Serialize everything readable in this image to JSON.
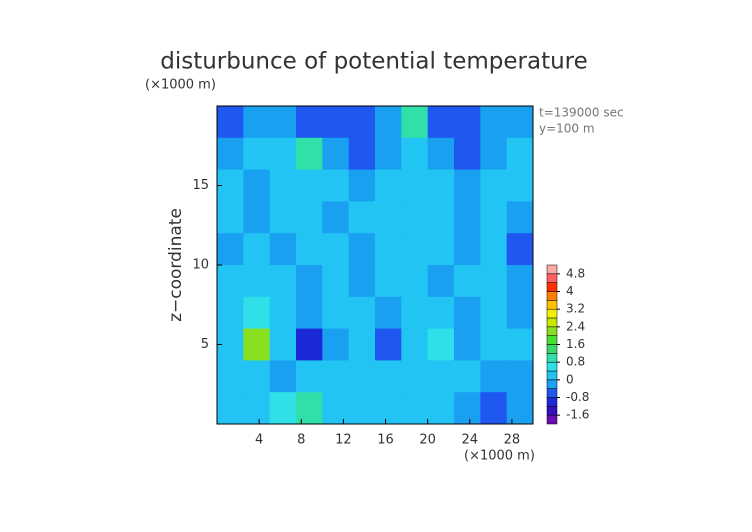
{
  "chart_data": {
    "type": "contour",
    "title": "disturbunce of potential temperature",
    "x_unit_label": "(×1000 m)",
    "y_unit_label": "(×1000 m)",
    "ylabel": "z−coordinate",
    "annotations": [
      "t=139000 sec",
      "y=100 m"
    ],
    "xlim": [
      0,
      30
    ],
    "ylim": [
      0,
      20
    ],
    "xticks": [
      4,
      8,
      12,
      16,
      20,
      24,
      28
    ],
    "yticks": [
      5,
      10,
      15
    ],
    "x": [
      1.25,
      3.75,
      6.25,
      8.75,
      11.25,
      13.75,
      16.25,
      18.75,
      21.25,
      23.75,
      26.25,
      28.75
    ],
    "y": [
      19,
      17,
      15,
      13,
      11,
      9,
      7,
      5,
      3,
      1
    ],
    "z": [
      [
        -0.6,
        -0.3,
        -0.2,
        -0.5,
        -0.7,
        -0.5,
        -0.4,
        0.8,
        -0.6,
        -0.5,
        -0.3,
        -0.2
      ],
      [
        -0.2,
        0.1,
        0.2,
        0.9,
        -0.3,
        -0.5,
        -0.2,
        0.1,
        -0.4,
        -0.6,
        -0.2,
        0.1
      ],
      [
        0.1,
        -0.2,
        0.1,
        0.2,
        0.2,
        -0.1,
        0.1,
        0.2,
        0.1,
        -0.2,
        0.1,
        0.2
      ],
      [
        0.2,
        -0.1,
        0.1,
        0.3,
        -0.1,
        0.2,
        0.1,
        0.2,
        0.3,
        -0.3,
        0.1,
        -0.3
      ],
      [
        -0.1,
        0.2,
        -0.2,
        0.1,
        0.3,
        -0.2,
        0.1,
        0.3,
        0.1,
        -0.2,
        0.2,
        -0.6
      ],
      [
        0.2,
        0.1,
        0.3,
        -0.1,
        0.2,
        -0.3,
        0.1,
        0.2,
        -0.1,
        0.2,
        0.1,
        -0.4
      ],
      [
        0.1,
        0.5,
        0.2,
        -0.3,
        0.1,
        0.2,
        -0.1,
        0.3,
        0.2,
        -0.4,
        0.1,
        -0.3
      ],
      [
        0.1,
        2.0,
        0.3,
        -1.0,
        -0.3,
        0.1,
        -0.6,
        0.1,
        0.5,
        -0.4,
        0.2,
        0.1
      ],
      [
        0.1,
        0.2,
        -0.2,
        0.1,
        0.3,
        0.1,
        0.2,
        0.1,
        0.3,
        0.2,
        -0.3,
        -0.2
      ],
      [
        0.2,
        0.1,
        0.6,
        0.8,
        0.3,
        0.2,
        0.1,
        0.3,
        0.2,
        -0.3,
        -0.8,
        -0.3
      ]
    ],
    "levels": [
      -2.0,
      -1.6,
      -1.2,
      -0.8,
      -0.4,
      0,
      0.4,
      0.8,
      1.2,
      1.6,
      2.0,
      2.4,
      2.8,
      3.2,
      3.6,
      4.0,
      4.4,
      4.8,
      5.2
    ],
    "colors": [
      "#6a10b0",
      "#3010c0",
      "#1a28d8",
      "#1e58f0",
      "#1aa0f0",
      "#22c4f4",
      "#30e0e8",
      "#30e0a8",
      "#38d868",
      "#48e030",
      "#88e020",
      "#c8e800",
      "#f0f000",
      "#ffc000",
      "#ff8000",
      "#ff3000",
      "#ff6060",
      "#ffa8a8"
    ],
    "colorbar_ticks": [
      -1.6,
      -0.8,
      0,
      0.8,
      1.6,
      2.4,
      3.2,
      4,
      4.8
    ]
  }
}
